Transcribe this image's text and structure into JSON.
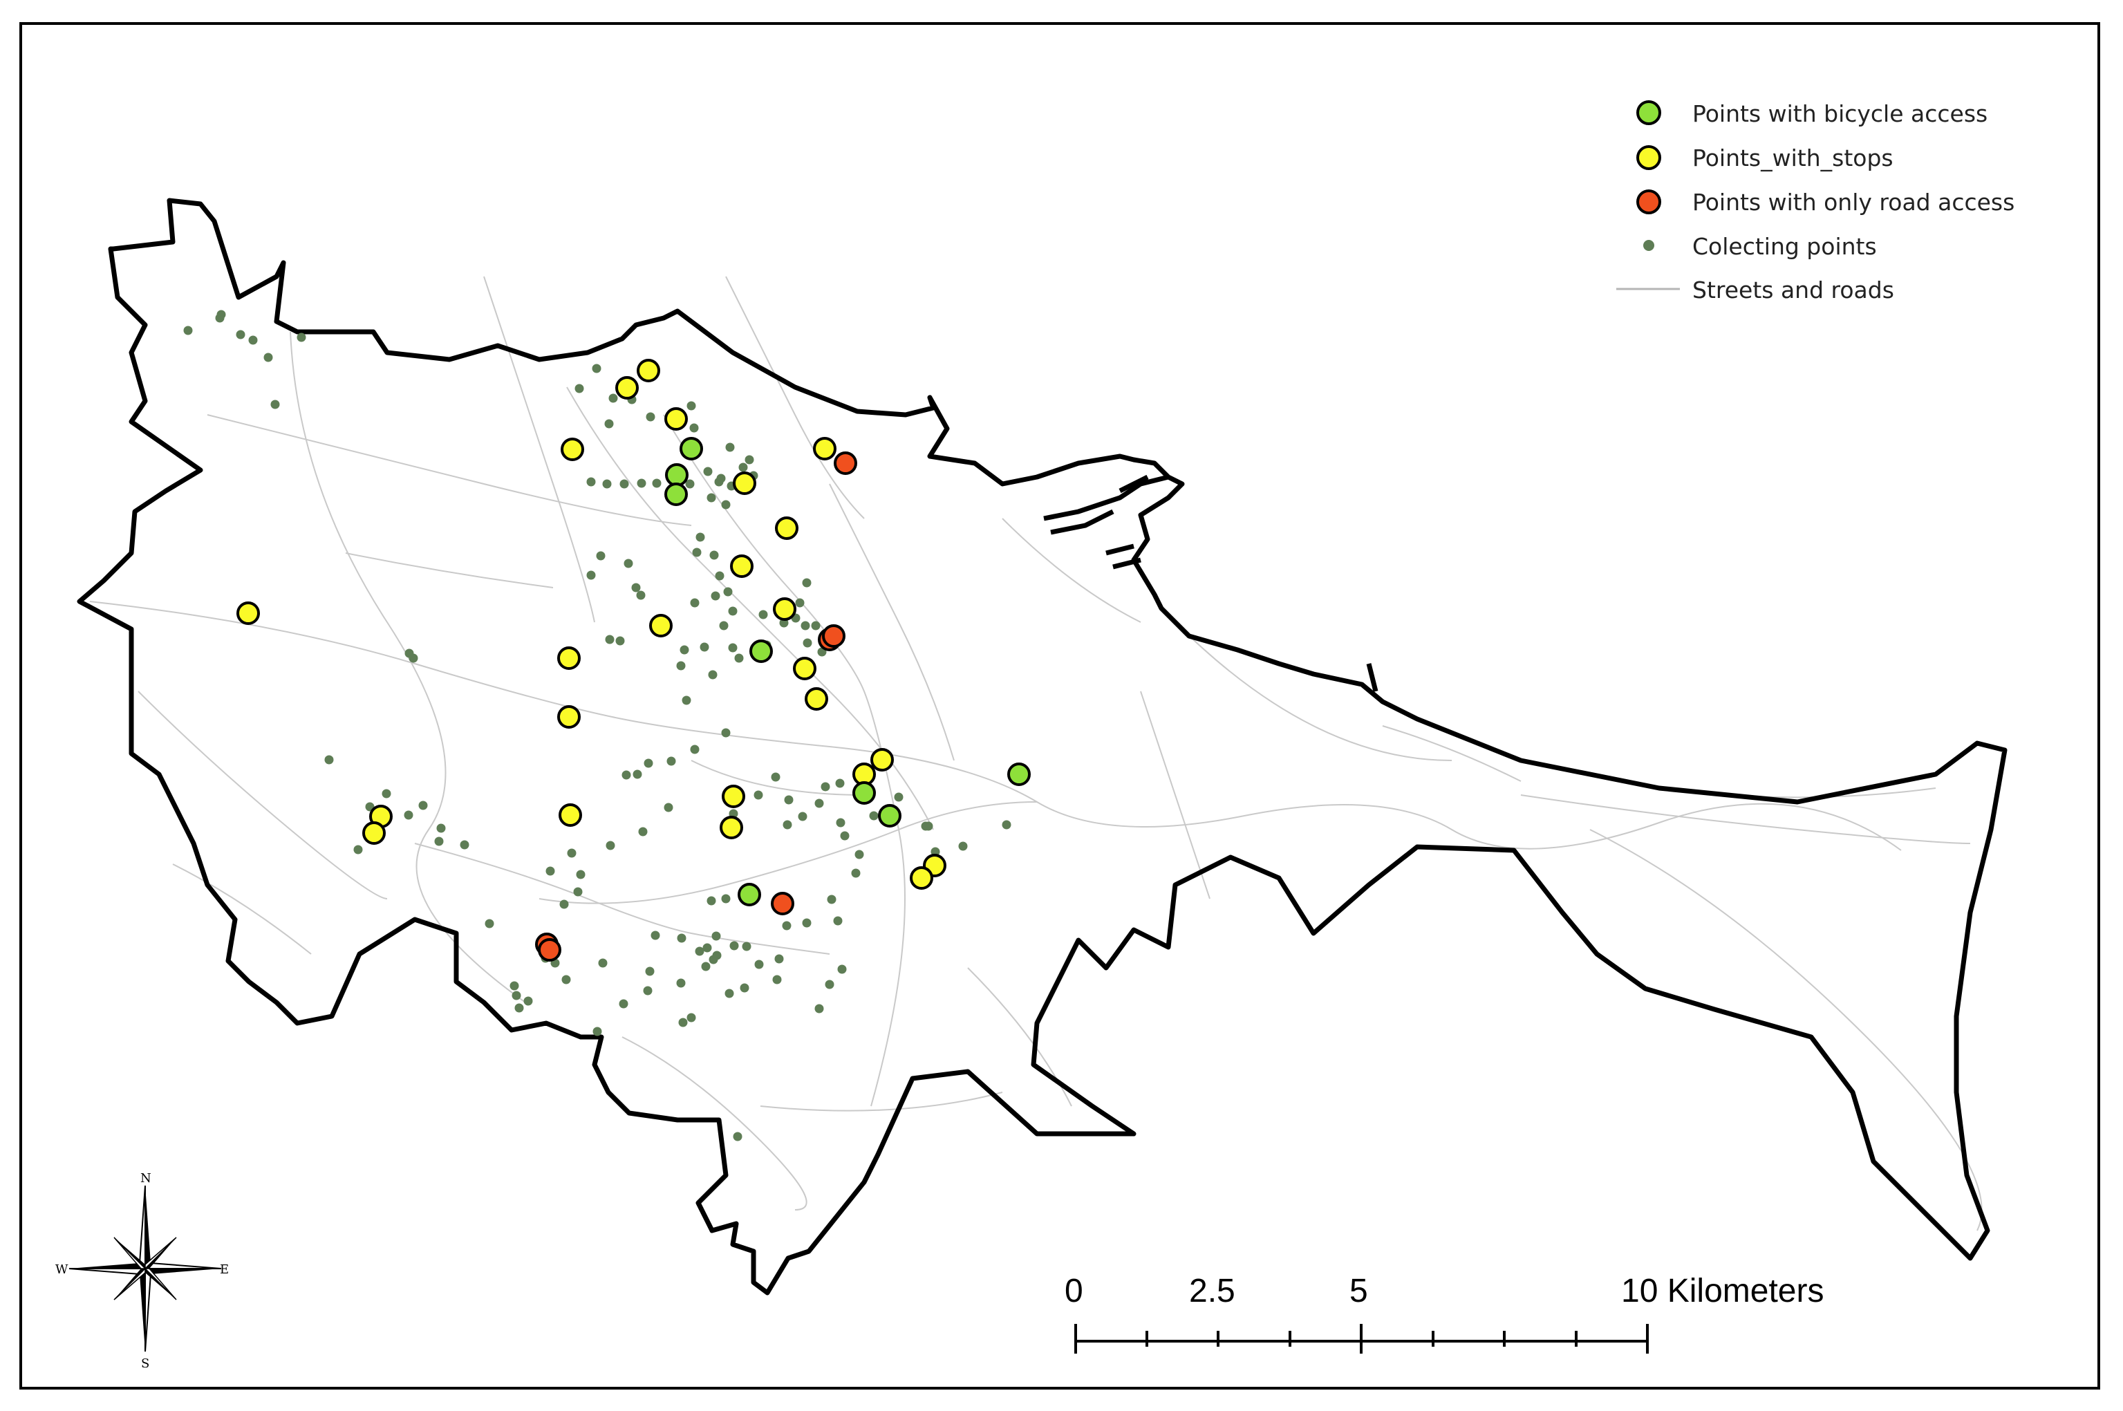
{
  "legend": {
    "items": [
      {
        "label": "Points with bicycle access",
        "color": "#8ee03a",
        "kind": "circle-large"
      },
      {
        "label": "Points_with_stops",
        "color": "#fafa28",
        "kind": "circle-large"
      },
      {
        "label": "Points with only road access",
        "color": "#f0501e",
        "kind": "circle-large"
      },
      {
        "label": "Colecting points",
        "color": "#5e7d55",
        "kind": "circle-small"
      },
      {
        "label": "Streets and roads",
        "color": "#b5b5b5",
        "kind": "line"
      }
    ]
  },
  "scale_bar": {
    "labels": [
      "0",
      "2.5",
      "5",
      "10 Kilometers"
    ]
  },
  "compass": {
    "n": "N",
    "s": "S",
    "e": "E",
    "w": "W"
  },
  "colors": {
    "boundary": "#000000",
    "streets": "#c4c4c4",
    "bicycle": "#8ee03a",
    "stops": "#fafa28",
    "road_only": "#f0501e",
    "collecting": "#5e7d55"
  }
}
